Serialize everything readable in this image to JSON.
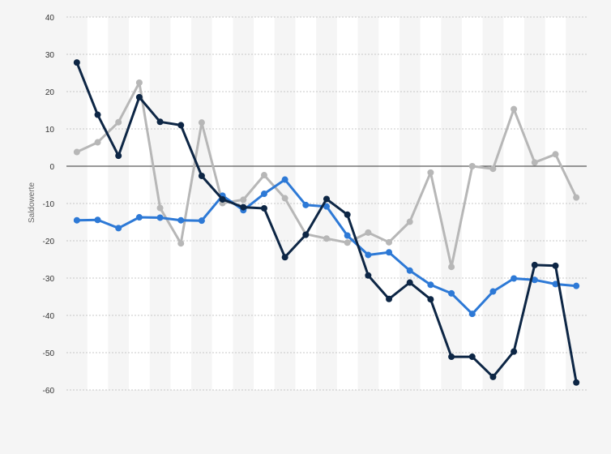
{
  "chart_data": {
    "type": "line",
    "title": "",
    "xlabel": "",
    "ylabel": "Saldowerte",
    "ylim": [
      -60,
      40
    ],
    "y_ticks": [
      40,
      30,
      20,
      10,
      0,
      -10,
      -20,
      -30,
      -40,
      -50,
      -60
    ],
    "y_tick_labels": [
      "40",
      "30",
      "20",
      "10",
      "0",
      "-10",
      "-20",
      "-30",
      "-40",
      "-50",
      "-60"
    ],
    "grid": true,
    "legend": "none",
    "x": [
      1,
      2,
      3,
      4,
      5,
      6,
      7,
      8,
      9,
      10,
      11,
      12,
      13,
      14,
      15,
      16,
      17,
      18,
      19,
      20,
      21,
      22,
      23,
      24,
      25
    ],
    "series": [
      {
        "color": "#0d2645",
        "values": [
          27.8,
          13.8,
          2.8,
          18.5,
          11.9,
          11.0,
          -2.6,
          -8.9,
          -11.0,
          -11.3,
          -24.4,
          -18.4,
          -8.8,
          -13.0,
          -29.3,
          -35.6,
          -31.2,
          -35.7,
          -51.1,
          -51.1,
          -56.5,
          -49.7,
          -26.5,
          -26.7,
          -58.0
        ]
      },
      {
        "color": "#2d79d6",
        "values": [
          -14.5,
          -14.4,
          -16.6,
          -13.7,
          -13.8,
          -14.5,
          -14.6,
          -7.9,
          -11.8,
          -7.4,
          -3.6,
          -10.4,
          -10.8,
          -18.6,
          -23.8,
          -23.1,
          -28.0,
          -31.8,
          -34.1,
          -39.6,
          -33.6,
          -30.1,
          -30.5,
          -31.6,
          -32.1
        ]
      },
      {
        "color": "#b7b7b7",
        "values": [
          3.8,
          6.4,
          11.8,
          22.4,
          -11.2,
          -20.7,
          11.7,
          -9.9,
          -9.0,
          -2.4,
          -8.6,
          -18.2,
          -19.4,
          -20.5,
          -17.8,
          -20.4,
          -14.9,
          -1.7,
          -27.0,
          0.0,
          -0.7,
          15.3,
          1.0,
          3.2,
          -8.4
        ]
      }
    ],
    "colors": {
      "background": "#f5f5f5",
      "band": "#ffffff",
      "grid": "#c8c8c8",
      "zero_line": "#333333"
    }
  }
}
